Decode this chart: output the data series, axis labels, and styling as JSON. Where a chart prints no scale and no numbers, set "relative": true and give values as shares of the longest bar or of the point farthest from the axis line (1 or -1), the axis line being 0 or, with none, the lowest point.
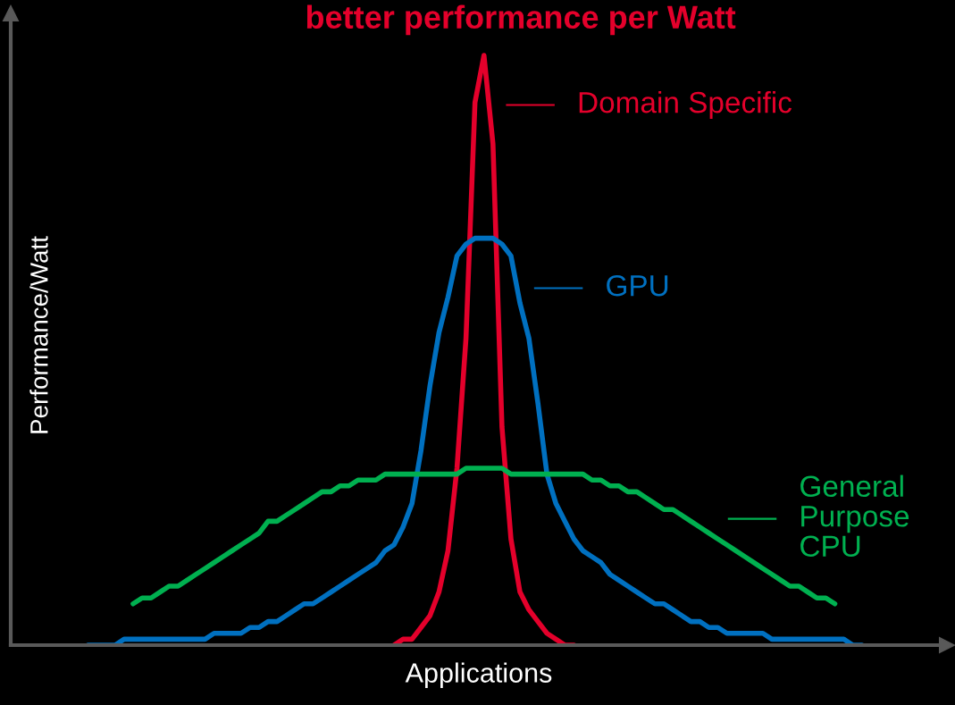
{
  "chart_data": {
    "type": "line",
    "title": "better performance per Watt",
    "xlabel": "Applications",
    "ylabel": "Performance/Watt",
    "relative": true,
    "legend": "right",
    "marker": "none",
    "line_style": "solid",
    "categories": [
      null,
      null,
      null,
      null,
      null,
      null,
      null,
      null,
      null,
      null,
      null,
      null,
      null,
      null,
      null,
      null,
      null,
      null,
      null,
      null,
      null,
      null,
      null,
      null,
      null,
      null,
      null,
      null,
      null,
      null,
      null,
      null,
      null,
      null,
      null,
      null,
      null,
      null,
      null,
      null,
      null,
      null,
      null,
      null,
      null,
      null,
      null,
      null,
      null,
      null,
      null,
      null,
      null,
      null,
      null,
      null,
      null,
      null,
      null,
      null,
      null,
      null,
      null,
      null,
      null,
      null,
      null,
      null,
      null,
      null,
      null,
      null,
      null,
      null,
      null,
      null,
      null,
      null,
      null,
      null,
      null,
      null,
      null,
      null,
      null,
      null,
      null
    ],
    "series": [
      {
        "name": "Domain Specific",
        "color": "#e4002b",
        "values": [
          null,
          null,
          null,
          null,
          null,
          null,
          null,
          null,
          null,
          null,
          null,
          null,
          null,
          null,
          null,
          null,
          null,
          null,
          null,
          null,
          null,
          null,
          null,
          null,
          null,
          null,
          null,
          null,
          null,
          null,
          null,
          null,
          null,
          null,
          0.0,
          0.01,
          0.01,
          0.03,
          0.05,
          0.09,
          0.16,
          0.3,
          0.52,
          0.92,
          1.0,
          0.85,
          0.37,
          0.18,
          0.09,
          0.06,
          0.04,
          0.02,
          0.01,
          0.0,
          0.0,
          null,
          null,
          null,
          null,
          null,
          null,
          null,
          null,
          null,
          null,
          null,
          null,
          null,
          null,
          null,
          null,
          null,
          null,
          null,
          null,
          null,
          null,
          null,
          null,
          null,
          null,
          null,
          null,
          null,
          null,
          null,
          null
        ]
      },
      {
        "name": "GPU",
        "color": "#0070c0",
        "values": [
          0.0,
          0.0,
          0.0,
          0.0,
          0.01,
          0.01,
          0.01,
          0.01,
          0.01,
          0.01,
          0.01,
          0.01,
          0.01,
          0.01,
          0.02,
          0.02,
          0.02,
          0.02,
          0.03,
          0.03,
          0.04,
          0.04,
          0.05,
          0.06,
          0.07,
          0.07,
          0.08,
          0.09,
          0.1,
          0.11,
          0.12,
          0.13,
          0.14,
          0.16,
          0.17,
          0.2,
          0.24,
          0.33,
          0.44,
          0.53,
          0.59,
          0.66,
          0.68,
          0.69,
          0.69,
          0.69,
          0.68,
          0.66,
          0.58,
          0.52,
          0.41,
          0.29,
          0.24,
          0.21,
          0.18,
          0.16,
          0.15,
          0.14,
          0.12,
          0.11,
          0.1,
          0.09,
          0.08,
          0.07,
          0.07,
          0.06,
          0.05,
          0.04,
          0.04,
          0.03,
          0.03,
          0.02,
          0.02,
          0.02,
          0.02,
          0.02,
          0.01,
          0.01,
          0.01,
          0.01,
          0.01,
          0.01,
          0.01,
          0.01,
          0.01,
          0.0,
          0.0
        ]
      },
      {
        "name": "General\nPurpose\nCPU",
        "color": "#00b050",
        "values": [
          null,
          null,
          null,
          null,
          null,
          0.07,
          0.08,
          0.08,
          0.09,
          0.1,
          0.1,
          0.11,
          0.12,
          0.13,
          0.14,
          0.15,
          0.16,
          0.17,
          0.18,
          0.19,
          0.21,
          0.21,
          0.22,
          0.23,
          0.24,
          0.25,
          0.26,
          0.26,
          0.27,
          0.27,
          0.28,
          0.28,
          0.28,
          0.29,
          0.29,
          0.29,
          0.29,
          0.29,
          0.29,
          0.29,
          0.29,
          0.29,
          0.3,
          0.3,
          0.3,
          0.3,
          0.3,
          0.29,
          0.29,
          0.29,
          0.29,
          0.29,
          0.29,
          0.29,
          0.29,
          0.29,
          0.28,
          0.28,
          0.27,
          0.27,
          0.26,
          0.26,
          0.25,
          0.24,
          0.23,
          0.23,
          0.22,
          0.21,
          0.2,
          0.19,
          0.18,
          0.17,
          0.16,
          0.15,
          0.14,
          0.13,
          0.12,
          0.11,
          0.1,
          0.1,
          0.09,
          0.08,
          0.08,
          0.07,
          null,
          null,
          null
        ]
      }
    ]
  }
}
